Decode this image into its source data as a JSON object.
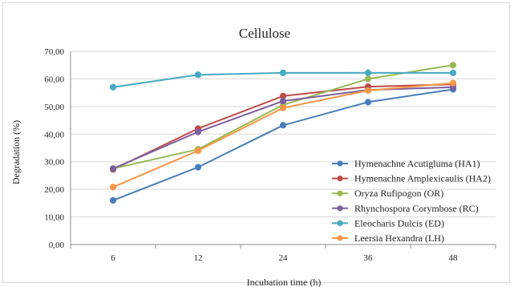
{
  "chart_data": {
    "type": "line",
    "title": "Cellulose",
    "xlabel": "Incubation time (h)",
    "ylabel": "Degradation (%)",
    "categories": [
      "6",
      "12",
      "24",
      "36",
      "48"
    ],
    "ylim": [
      0,
      70
    ],
    "yticks": [
      "0,00",
      "10,00",
      "20,00",
      "30,00",
      "40,00",
      "50,00",
      "60,00",
      "70,00"
    ],
    "grid": true,
    "legend_position": "right",
    "series": [
      {
        "name": "Hymenachne Acutigluma (HA1)",
        "color": "#4a7ebb",
        "values": [
          16.0,
          28.0,
          43.2,
          51.6,
          56.2
        ]
      },
      {
        "name": "Hymenachne Amplexicaulis (HA2)",
        "color": "#be4b48",
        "values": [
          27.2,
          42.0,
          53.8,
          57.2,
          58.0
        ]
      },
      {
        "name": "Oryza Rufipogon (OR)",
        "color": "#98b954",
        "values": [
          27.5,
          34.5,
          50.6,
          60.0,
          65.0
        ]
      },
      {
        "name": "Rhynchospora Corymbose (RC)",
        "color": "#7d60a0",
        "values": [
          27.5,
          40.8,
          52.0,
          56.0,
          57.0
        ]
      },
      {
        "name": "Eleocharis Dulcis (ED)",
        "color": "#46aac5",
        "values": [
          57.0,
          61.5,
          62.2,
          62.2,
          62.2
        ]
      },
      {
        "name": "Leersia Hexandra (LH)",
        "color": "#f79646",
        "values": [
          20.8,
          34.0,
          49.5,
          55.8,
          58.5
        ]
      }
    ]
  }
}
